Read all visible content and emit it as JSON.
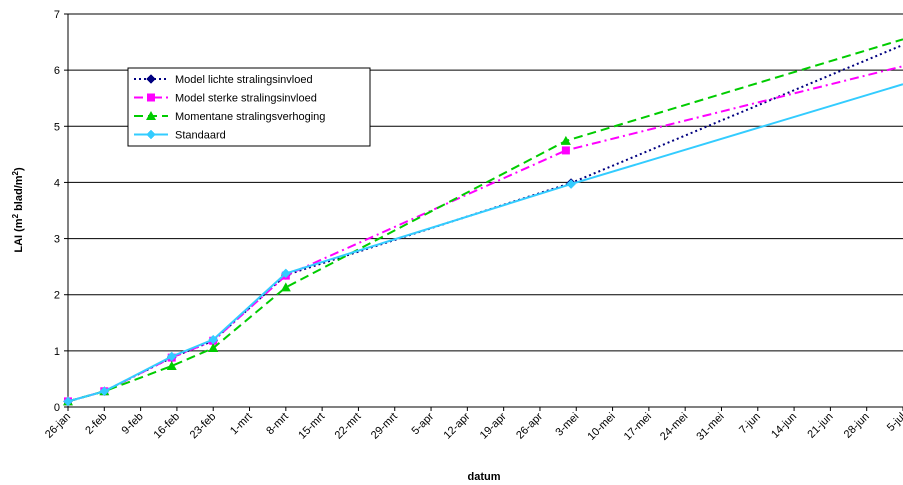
{
  "chart_data": {
    "type": "line",
    "title": "",
    "xlabel": "datum",
    "ylabel_parts": [
      "LAI (m",
      "2",
      " blad/m",
      "2",
      ")"
    ],
    "ylim": [
      0,
      7
    ],
    "yticks": [
      0,
      1,
      2,
      3,
      4,
      5,
      6,
      7
    ],
    "x_ticks": [
      "26-jan",
      "2-feb",
      "9-feb",
      "16-feb",
      "23-feb",
      "1-mrt",
      "8-mrt",
      "15-mrt",
      "22-mrt",
      "29-mrt",
      "5-apr",
      "12-apr",
      "19-apr",
      "26-apr",
      "3-mei",
      "10-mei",
      "17-mei",
      "24-mei",
      "31-mei",
      "7-jun",
      "14-jun",
      "21-jun",
      "28-jun",
      "5-jul"
    ],
    "x_unit": "days since 26-jan",
    "grid": "horizontal",
    "legend": "top-left",
    "series": [
      {
        "name": "Model lichte stralingsinvloed",
        "color": "#000080",
        "dash": "dotted",
        "marker": "diamond",
        "points": [
          [
            0,
            0.1
          ],
          [
            7,
            0.28
          ],
          [
            20,
            0.88
          ],
          [
            28,
            1.18
          ],
          [
            42,
            2.35
          ],
          [
            97,
            3.99
          ],
          [
            161,
            6.45
          ]
        ],
        "markers": [
          [
            0,
            0.1
          ],
          [
            7,
            0.28
          ],
          [
            20,
            0.88
          ],
          [
            28,
            1.18
          ],
          [
            42,
            2.35
          ],
          [
            97,
            3.99
          ]
        ]
      },
      {
        "name": "Model sterke stralingsinvloed",
        "color": "#ff00ff",
        "dash": "dashdot",
        "marker": "square",
        "points": [
          [
            0,
            0.1
          ],
          [
            7,
            0.28
          ],
          [
            20,
            0.88
          ],
          [
            28,
            1.18
          ],
          [
            42,
            2.34
          ],
          [
            96,
            4.57
          ],
          [
            161,
            6.07
          ]
        ],
        "markers": [
          [
            0,
            0.1
          ],
          [
            7,
            0.28
          ],
          [
            20,
            0.88
          ],
          [
            28,
            1.18
          ],
          [
            42,
            2.34
          ],
          [
            96,
            4.57
          ]
        ]
      },
      {
        "name": "Momentane stralingsverhoging",
        "color": "#00cc00",
        "dash": "dashed",
        "marker": "triangle",
        "points": [
          [
            0,
            0.1
          ],
          [
            7,
            0.28
          ],
          [
            20,
            0.73
          ],
          [
            28,
            1.05
          ],
          [
            42,
            2.13
          ],
          [
            96,
            4.74
          ],
          [
            161,
            6.55
          ]
        ],
        "markers": [
          [
            0,
            0.1
          ],
          [
            7,
            0.28
          ],
          [
            20,
            0.73
          ],
          [
            28,
            1.05
          ],
          [
            42,
            2.13
          ],
          [
            96,
            4.74
          ]
        ]
      },
      {
        "name": "Standaard",
        "color": "#33ccff",
        "dash": "solid",
        "marker": "diamond",
        "points": [
          [
            0,
            0.1
          ],
          [
            7,
            0.28
          ],
          [
            20,
            0.9
          ],
          [
            28,
            1.2
          ],
          [
            42,
            2.38
          ],
          [
            97,
            3.97
          ],
          [
            161,
            5.75
          ]
        ],
        "markers": [
          [
            0,
            0.1
          ],
          [
            7,
            0.28
          ],
          [
            20,
            0.9
          ],
          [
            28,
            1.2
          ],
          [
            42,
            2.38
          ],
          [
            97,
            3.97
          ]
        ]
      }
    ]
  }
}
